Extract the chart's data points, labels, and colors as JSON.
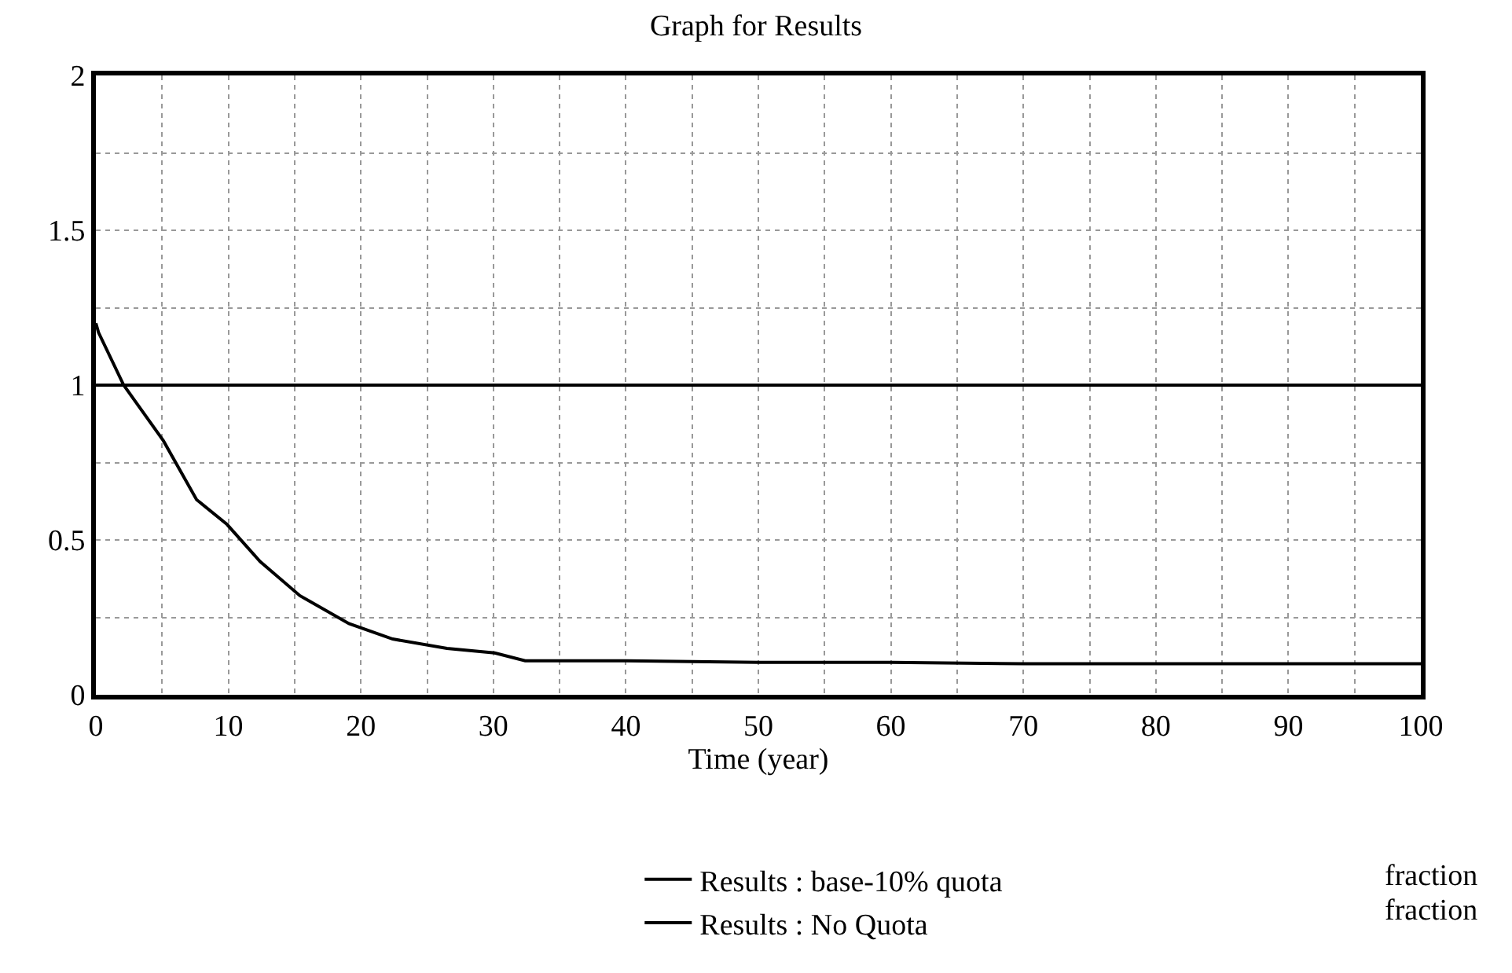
{
  "chart_data": {
    "type": "line",
    "title": "Graph for Results",
    "xlabel": "Time (year)",
    "series": [
      {
        "name": "Results : base-10% quota",
        "color": "#000000",
        "x": [
          0,
          0.2,
          2.1,
          5.1,
          7.6,
          9.9,
          12.4,
          15.4,
          19.1,
          22.4,
          26.5,
          30.1,
          32.4,
          40,
          50,
          60,
          70,
          80,
          90,
          100
        ],
        "values": [
          1.2,
          1.17,
          1.0,
          0.82,
          0.63,
          0.55,
          0.43,
          0.32,
          0.23,
          0.18,
          0.15,
          0.135,
          0.11,
          0.11,
          0.105,
          0.105,
          0.1,
          0.1,
          0.1,
          0.1
        ]
      },
      {
        "name": "Results : No Quota",
        "color": "#000000",
        "x": [
          0,
          100
        ],
        "values": [
          1,
          1
        ]
      }
    ],
    "annotations": [
      "fraction",
      "fraction"
    ],
    "xlim": [
      0,
      100
    ],
    "xticks": [
      0,
      {
        "value": 5,
        "label": null
      },
      10,
      {
        "value": 15,
        "label": null
      },
      20,
      {
        "value": 25,
        "label": null
      },
      30,
      {
        "value": 35,
        "label": null
      },
      40,
      {
        "value": 45,
        "label": null
      },
      50,
      {
        "value": 55,
        "label": null
      },
      60,
      {
        "value": 65,
        "label": null
      },
      70,
      {
        "value": 75,
        "label": null
      },
      80,
      {
        "value": 85,
        "label": null
      },
      90,
      {
        "value": 95,
        "label": null
      },
      100
    ],
    "ylim": [
      0,
      2
    ],
    "yticks": [
      0,
      {
        "value": 0.25,
        "label": null
      },
      0.5,
      {
        "value": 0.75,
        "label": null
      },
      1,
      {
        "value": 1.25,
        "label": null
      },
      1.5,
      {
        "value": 1.75,
        "label": null
      },
      2
    ],
    "grid": true,
    "legend": "bottom",
    "marker": "none",
    "line_style": "solid"
  }
}
